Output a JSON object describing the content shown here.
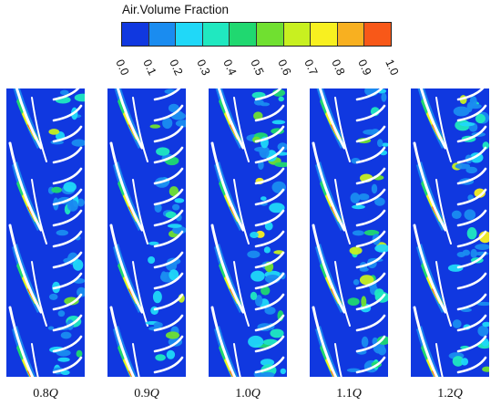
{
  "legend": {
    "title": "Air.Volume Fraction",
    "ticks": [
      "0.0",
      "0.1",
      "0.2",
      "0.3",
      "0.4",
      "0.5",
      "0.6",
      "0.7",
      "0.8",
      "0.9",
      "1.0"
    ],
    "colors": [
      "#1038e0",
      "#1a8cf0",
      "#20d8f8",
      "#20e8c0",
      "#20d870",
      "#70e030",
      "#c8f020",
      "#f8f020",
      "#f8b020",
      "#f85818"
    ]
  },
  "panels": [
    {
      "num": "0.8",
      "unit": "Q",
      "air_level": 0.35
    },
    {
      "num": "0.9",
      "unit": "Q",
      "air_level": 0.3
    },
    {
      "num": "1.0",
      "unit": "Q",
      "air_level": 0.65
    },
    {
      "num": "1.1",
      "unit": "Q",
      "air_level": 0.55
    },
    {
      "num": "1.2",
      "unit": "Q",
      "air_level": 0.45
    }
  ]
}
